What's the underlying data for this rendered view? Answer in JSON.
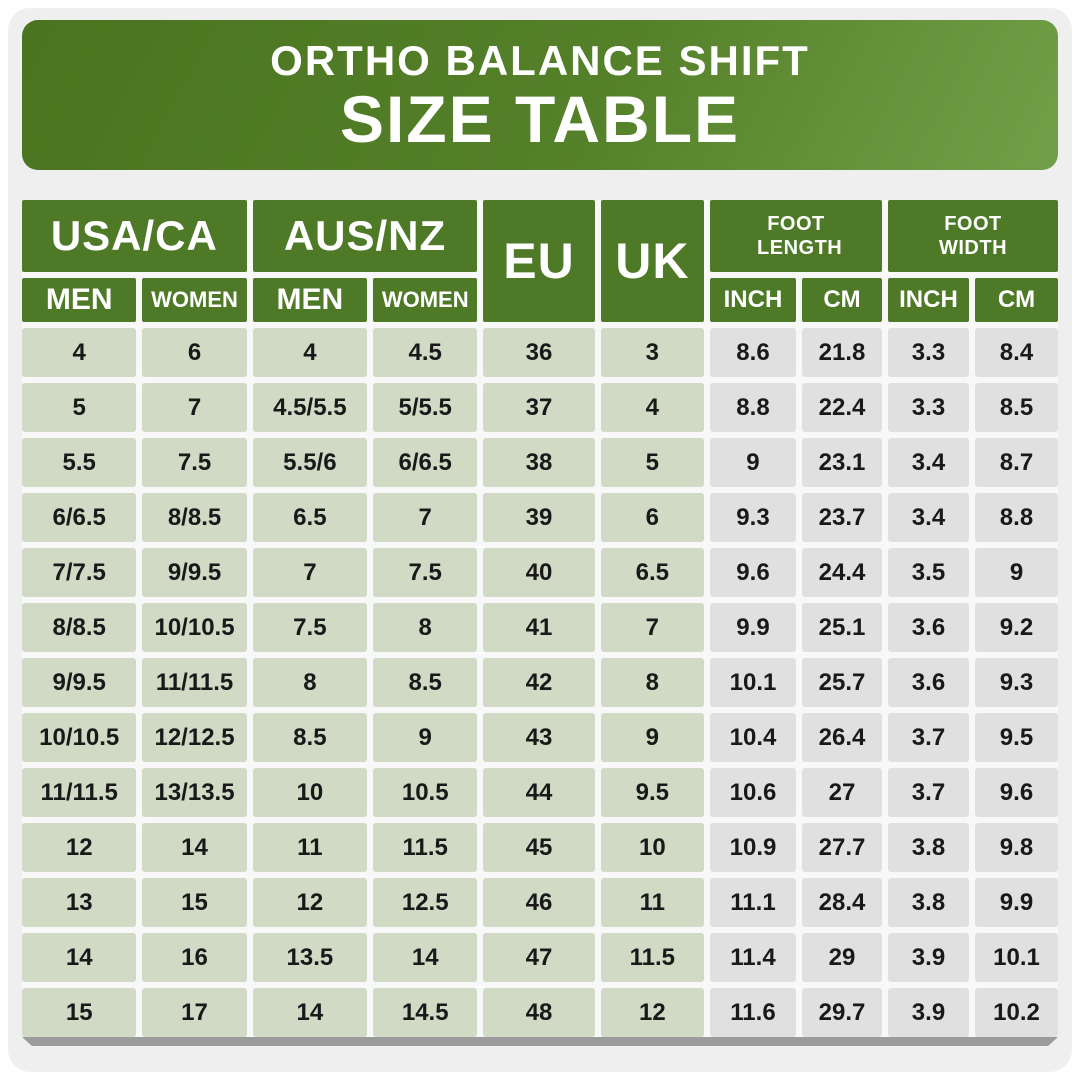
{
  "banner": {
    "title": "ORTHO BALANCE SHIFT",
    "subtitle": "SIZE TABLE"
  },
  "table": {
    "header": {
      "usa_ca": {
        "label": "USA/CA",
        "men": "MEN",
        "women": "WOMEN"
      },
      "aus_nz": {
        "label": "AUS/NZ",
        "men": "MEN",
        "women": "WOMEN"
      },
      "eu": "EU",
      "uk": "UK",
      "foot_length": {
        "label": "FOOT LENGTH",
        "inch": "INCH",
        "cm": "CM"
      },
      "foot_width": {
        "label": "FOOT WIDTH",
        "inch": "INCH",
        "cm": "CM"
      }
    },
    "columns": [
      "USA/CA MEN",
      "USA/CA WOMEN",
      "AUS/NZ MEN",
      "AUS/NZ WOMEN",
      "EU",
      "UK",
      "FOOT LENGTH INCH",
      "FOOT LENGTH CM",
      "FOOT WIDTH INCH",
      "FOOT WIDTH CM"
    ],
    "rows": [
      [
        "4",
        "6",
        "4",
        "4.5",
        "36",
        "3",
        "8.6",
        "21.8",
        "3.3",
        "8.4"
      ],
      [
        "5",
        "7",
        "4.5/5.5",
        "5/5.5",
        "37",
        "4",
        "8.8",
        "22.4",
        "3.3",
        "8.5"
      ],
      [
        "5.5",
        "7.5",
        "5.5/6",
        "6/6.5",
        "38",
        "5",
        "9",
        "23.1",
        "3.4",
        "8.7"
      ],
      [
        "6/6.5",
        "8/8.5",
        "6.5",
        "7",
        "39",
        "6",
        "9.3",
        "23.7",
        "3.4",
        "8.8"
      ],
      [
        "7/7.5",
        "9/9.5",
        "7",
        "7.5",
        "40",
        "6.5",
        "9.6",
        "24.4",
        "3.5",
        "9"
      ],
      [
        "8/8.5",
        "10/10.5",
        "7.5",
        "8",
        "41",
        "7",
        "9.9",
        "25.1",
        "3.6",
        "9.2"
      ],
      [
        "9/9.5",
        "11/11.5",
        "8",
        "8.5",
        "42",
        "8",
        "10.1",
        "25.7",
        "3.6",
        "9.3"
      ],
      [
        "10/10.5",
        "12/12.5",
        "8.5",
        "9",
        "43",
        "9",
        "10.4",
        "26.4",
        "3.7",
        "9.5"
      ],
      [
        "11/11.5",
        "13/13.5",
        "10",
        "10.5",
        "44",
        "9.5",
        "10.6",
        "27",
        "3.7",
        "9.6"
      ],
      [
        "12",
        "14",
        "11",
        "11.5",
        "45",
        "10",
        "10.9",
        "27.7",
        "3.8",
        "9.8"
      ],
      [
        "13",
        "15",
        "12",
        "12.5",
        "46",
        "11",
        "11.1",
        "28.4",
        "3.8",
        "9.9"
      ],
      [
        "14",
        "16",
        "13.5",
        "14",
        "47",
        "11.5",
        "11.4",
        "29",
        "3.9",
        "10.1"
      ],
      [
        "15",
        "17",
        "14",
        "14.5",
        "48",
        "12",
        "11.6",
        "29.7",
        "3.9",
        "10.2"
      ]
    ]
  },
  "colors": {
    "banner_green_dark": "#4a741f",
    "banner_green_light": "#72a049",
    "header_green": "#4e7a28",
    "cell_green": "#d1dac4",
    "cell_gray": "#e0e0e0",
    "page_bg": "#efeff0",
    "frame_white": "#ffffff",
    "shadow_gray": "#9b9b9b",
    "text_dark": "#191919",
    "text_white": "#ffffff"
  }
}
